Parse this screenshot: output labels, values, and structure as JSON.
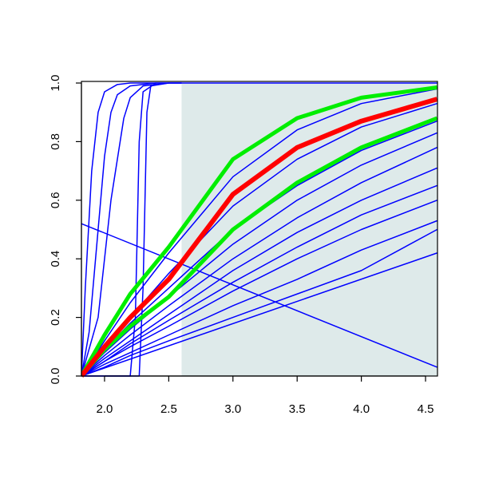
{
  "chart_data": {
    "type": "line",
    "xlim": [
      1.82,
      4.593
    ],
    "ylim": [
      0,
      1
    ],
    "xticks": [
      {
        "value": 2.0,
        "label": "2.0"
      },
      2.5,
      {
        "value": 3.0,
        "label": "3.0"
      },
      3.5,
      {
        "value": 4.0,
        "label": "4.0"
      },
      4.5
    ],
    "yticks": [
      {
        "value": 0,
        "label": "0.0"
      },
      0.2,
      0.4,
      0.6,
      0.8,
      {
        "value": 1,
        "label": "1.0"
      }
    ],
    "highlight": {
      "x": [
        2.6,
        4.593
      ],
      "color": "#deeaea"
    },
    "series": [
      {
        "color": "#0000ff",
        "line_width": 1.5,
        "x": [
          1.82,
          2.0,
          2.2,
          2.5,
          3.0,
          3.5,
          4.0,
          4.59
        ],
        "values": [
          0,
          0.12,
          0.25,
          0.42,
          0.68,
          0.84,
          0.93,
          0.98
        ]
      },
      {
        "color": "#0000ff",
        "line_width": 1.5,
        "x": [
          1.82,
          2.0,
          2.2,
          2.5,
          3.0,
          3.5,
          4.0,
          4.59
        ],
        "values": [
          0,
          0.1,
          0.2,
          0.35,
          0.58,
          0.74,
          0.85,
          0.93
        ]
      },
      {
        "color": "#0000ff",
        "line_width": 1.5,
        "x": [
          1.82,
          2.0,
          2.2,
          2.5,
          3.0,
          3.5,
          4.0,
          4.59
        ],
        "values": [
          0,
          0.09,
          0.18,
          0.3,
          0.5,
          0.65,
          0.77,
          0.87
        ]
      },
      {
        "color": "#0000ff",
        "line_width": 1.5,
        "x": [
          1.82,
          2.0,
          2.2,
          2.5,
          3.0,
          3.5,
          4.0,
          4.59
        ],
        "values": [
          0,
          0.08,
          0.16,
          0.27,
          0.45,
          0.6,
          0.72,
          0.83
        ]
      },
      {
        "color": "#0000ff",
        "line_width": 1.5,
        "x": [
          1.82,
          2.0,
          2.2,
          2.5,
          3.0,
          3.5,
          4.0,
          4.59
        ],
        "values": [
          0,
          0.07,
          0.14,
          0.24,
          0.4,
          0.54,
          0.66,
          0.78
        ]
      },
      {
        "color": "#0000ff",
        "line_width": 1.5,
        "x": [
          1.82,
          2.0,
          2.2,
          2.5,
          3.0,
          3.5,
          4.0,
          4.59
        ],
        "values": [
          0,
          0.06,
          0.12,
          0.21,
          0.36,
          0.49,
          0.6,
          0.71
        ]
      },
      {
        "color": "#0000ff",
        "line_width": 1.5,
        "x": [
          1.82,
          2.0,
          2.2,
          2.5,
          3.0,
          3.5,
          4.0,
          4.59
        ],
        "values": [
          0,
          0.05,
          0.11,
          0.19,
          0.32,
          0.44,
          0.55,
          0.65
        ]
      },
      {
        "color": "#0000ff",
        "line_width": 1.5,
        "x": [
          1.82,
          2.0,
          2.2,
          2.5,
          3.0,
          3.5,
          4.0,
          4.59
        ],
        "values": [
          0,
          0.05,
          0.1,
          0.17,
          0.29,
          0.4,
          0.5,
          0.6
        ]
      },
      {
        "color": "#0000ff",
        "line_width": 1.5,
        "x": [
          1.82,
          2.0,
          2.2,
          2.5,
          3.0,
          3.5,
          4.0,
          4.59
        ],
        "values": [
          0,
          0.04,
          0.08,
          0.14,
          0.24,
          0.33,
          0.43,
          0.53
        ]
      },
      {
        "color": "#0000ff",
        "line_width": 1.5,
        "x": [
          1.82,
          2.0,
          2.2,
          2.5,
          3.0,
          3.5,
          4.0,
          4.59
        ],
        "values": [
          0,
          0.03,
          0.07,
          0.12,
          0.2,
          0.28,
          0.36,
          0.5
        ]
      },
      {
        "color": "#0000ff",
        "line_width": 1.5,
        "x": [
          1.82,
          4.59
        ],
        "values": [
          0,
          0.42
        ]
      },
      {
        "color": "#0000ff",
        "line_width": 1.5,
        "x": [
          1.82,
          4.59
        ],
        "values": [
          0.52,
          0.03
        ]
      },
      {
        "color": "#0000ff",
        "line_width": 1.5,
        "x": [
          1.82,
          1.85,
          1.9,
          1.95,
          2.0,
          2.1,
          2.2,
          4.59
        ],
        "values": [
          0,
          0.3,
          0.7,
          0.9,
          0.97,
          0.995,
          1,
          1
        ]
      },
      {
        "color": "#0000ff",
        "line_width": 1.5,
        "x": [
          1.82,
          1.88,
          1.95,
          2.0,
          2.05,
          2.1,
          2.2,
          2.4
        ],
        "values": [
          0,
          0.15,
          0.5,
          0.75,
          0.9,
          0.96,
          0.99,
          1
        ]
      },
      {
        "color": "#0000ff",
        "line_width": 1.5,
        "x": [
          1.82,
          1.95,
          2.05,
          2.15,
          2.2,
          2.3,
          2.5
        ],
        "values": [
          0,
          0.2,
          0.6,
          0.88,
          0.95,
          0.99,
          1
        ]
      },
      {
        "color": "#0000ff",
        "line_width": 1.5,
        "x": [
          1.82,
          2.2,
          2.24,
          2.27,
          2.3,
          2.4,
          2.6
        ],
        "values": [
          0,
          0,
          0.2,
          0.8,
          0.97,
          1,
          1
        ]
      },
      {
        "color": "#0000ff",
        "line_width": 1.5,
        "x": [
          1.82,
          2.27,
          2.3,
          2.33,
          2.36,
          2.5,
          2.6
        ],
        "values": [
          0,
          0,
          0.3,
          0.9,
          0.99,
          1,
          1
        ]
      },
      {
        "color": "#00ee00",
        "line_width": 5,
        "x": [
          1.82,
          2.0,
          2.2,
          2.5,
          3.0,
          3.5,
          4.0,
          4.59
        ],
        "values": [
          0,
          0.14,
          0.28,
          0.44,
          0.74,
          0.88,
          0.95,
          0.985
        ]
      },
      {
        "color": "#00ee00",
        "line_width": 5,
        "x": [
          1.82,
          2.0,
          2.2,
          2.5,
          3.0,
          3.5,
          4.0,
          4.59
        ],
        "values": [
          0,
          0.09,
          0.17,
          0.27,
          0.5,
          0.66,
          0.78,
          0.88
        ]
      },
      {
        "color": "#ff0000",
        "line_width": 6,
        "x": [
          1.82,
          2.0,
          2.2,
          2.5,
          3.0,
          3.5,
          4.0,
          4.59
        ],
        "values": [
          0,
          0.1,
          0.2,
          0.33,
          0.62,
          0.78,
          0.87,
          0.945
        ]
      }
    ]
  }
}
